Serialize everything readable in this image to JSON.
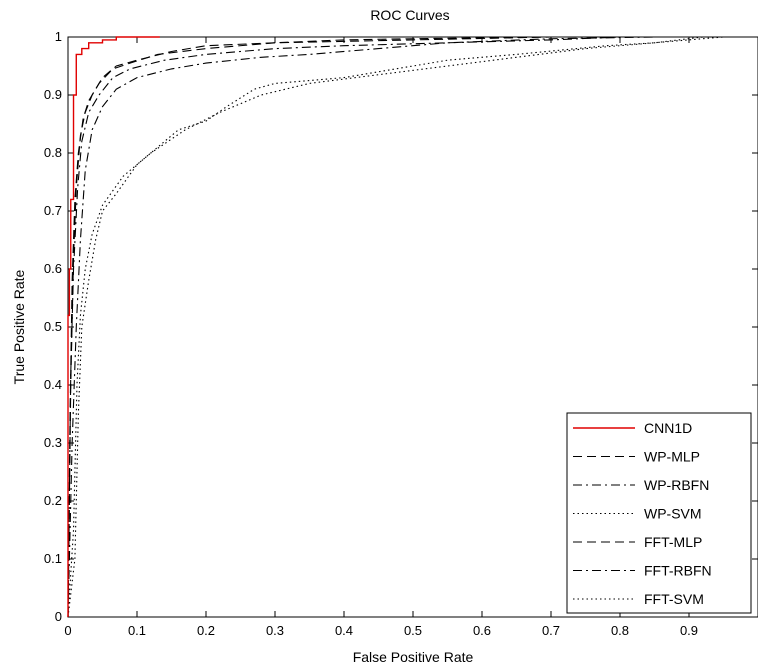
{
  "chart_data": {
    "type": "line",
    "title": "ROC Curves",
    "xlabel": "False Positive Rate",
    "ylabel": "True Positive Rate",
    "xlim": [
      0,
      1
    ],
    "ylim": [
      0,
      1
    ],
    "xticks": [
      "0",
      "0.1",
      "0.2",
      "0.3",
      "0.4",
      "0.5",
      "0.6",
      "0.7",
      "0.8",
      "0.9"
    ],
    "yticks": [
      "0",
      "0.1",
      "0.2",
      "0.3",
      "0.4",
      "0.5",
      "0.6",
      "0.7",
      "0.8",
      "0.9",
      "1"
    ],
    "grid": false,
    "legend_position": "bottom-right",
    "series": [
      {
        "name": "CNN1D",
        "color": "#e00000",
        "style": "solid",
        "points": [
          [
            0,
            0
          ],
          [
            0,
            0.52
          ],
          [
            0.002,
            0.52
          ],
          [
            0.002,
            0.6
          ],
          [
            0.004,
            0.6
          ],
          [
            0.004,
            0.72
          ],
          [
            0.008,
            0.72
          ],
          [
            0.008,
            0.9
          ],
          [
            0.012,
            0.9
          ],
          [
            0.012,
            0.97
          ],
          [
            0.02,
            0.97
          ],
          [
            0.02,
            0.98
          ],
          [
            0.03,
            0.98
          ],
          [
            0.03,
            0.99
          ],
          [
            0.05,
            0.99
          ],
          [
            0.05,
            0.995
          ],
          [
            0.07,
            0.995
          ],
          [
            0.07,
            1.0
          ],
          [
            0.133,
            1.0
          ]
        ]
      },
      {
        "name": "WP-MLP",
        "color": "#000000",
        "style": "dashed",
        "points": [
          [
            0,
            0
          ],
          [
            0.004,
            0.4
          ],
          [
            0.008,
            0.62
          ],
          [
            0.012,
            0.74
          ],
          [
            0.018,
            0.83
          ],
          [
            0.025,
            0.87
          ],
          [
            0.035,
            0.9
          ],
          [
            0.05,
            0.93
          ],
          [
            0.07,
            0.95
          ],
          [
            0.1,
            0.96
          ],
          [
            0.15,
            0.975
          ],
          [
            0.2,
            0.985
          ],
          [
            0.3,
            0.99
          ],
          [
            0.4,
            0.995
          ],
          [
            0.5,
            0.997
          ],
          [
            0.7,
            1.0
          ],
          [
            1.0,
            1.0
          ]
        ]
      },
      {
        "name": "WP-RBFN",
        "color": "#000000",
        "style": "dashdot",
        "points": [
          [
            0,
            0
          ],
          [
            0.006,
            0.3
          ],
          [
            0.012,
            0.5
          ],
          [
            0.018,
            0.65
          ],
          [
            0.025,
            0.77
          ],
          [
            0.035,
            0.84
          ],
          [
            0.05,
            0.88
          ],
          [
            0.07,
            0.91
          ],
          [
            0.1,
            0.93
          ],
          [
            0.15,
            0.945
          ],
          [
            0.2,
            0.955
          ],
          [
            0.28,
            0.965
          ],
          [
            0.35,
            0.97
          ],
          [
            0.45,
            0.98
          ],
          [
            0.55,
            0.99
          ],
          [
            0.7,
            0.995
          ],
          [
            0.8,
            1.0
          ],
          [
            1.0,
            1.0
          ]
        ]
      },
      {
        "name": "WP-SVM",
        "color": "#000000",
        "style": "dotted",
        "points": [
          [
            0,
            0
          ],
          [
            0.01,
            0.1
          ],
          [
            0.015,
            0.35
          ],
          [
            0.02,
            0.5
          ],
          [
            0.03,
            0.58
          ],
          [
            0.04,
            0.65
          ],
          [
            0.05,
            0.7
          ],
          [
            0.07,
            0.73
          ],
          [
            0.1,
            0.78
          ],
          [
            0.13,
            0.81
          ],
          [
            0.16,
            0.84
          ],
          [
            0.2,
            0.855
          ],
          [
            0.23,
            0.88
          ],
          [
            0.27,
            0.91
          ],
          [
            0.3,
            0.92
          ],
          [
            0.4,
            0.93
          ],
          [
            0.45,
            0.94
          ],
          [
            0.5,
            0.95
          ],
          [
            0.55,
            0.96
          ],
          [
            0.65,
            0.97
          ],
          [
            0.78,
            0.985
          ],
          [
            0.85,
            0.99
          ],
          [
            0.92,
            1.0
          ],
          [
            1.0,
            1.0
          ]
        ]
      },
      {
        "name": "FFT-MLP",
        "color": "#000000",
        "style": "dashed",
        "points": [
          [
            0,
            0
          ],
          [
            0.003,
            0.35
          ],
          [
            0.006,
            0.58
          ],
          [
            0.01,
            0.72
          ],
          [
            0.015,
            0.8
          ],
          [
            0.022,
            0.86
          ],
          [
            0.03,
            0.89
          ],
          [
            0.045,
            0.92
          ],
          [
            0.065,
            0.945
          ],
          [
            0.09,
            0.955
          ],
          [
            0.13,
            0.97
          ],
          [
            0.2,
            0.98
          ],
          [
            0.3,
            0.99
          ],
          [
            0.5,
            0.995
          ],
          [
            0.7,
            1.0
          ],
          [
            1.0,
            1.0
          ]
        ]
      },
      {
        "name": "FFT-RBFN",
        "color": "#000000",
        "style": "dashdot",
        "points": [
          [
            0,
            0
          ],
          [
            0.004,
            0.42
          ],
          [
            0.008,
            0.6
          ],
          [
            0.014,
            0.74
          ],
          [
            0.02,
            0.82
          ],
          [
            0.03,
            0.87
          ],
          [
            0.045,
            0.9
          ],
          [
            0.065,
            0.93
          ],
          [
            0.09,
            0.945
          ],
          [
            0.14,
            0.96
          ],
          [
            0.2,
            0.97
          ],
          [
            0.3,
            0.98
          ],
          [
            0.4,
            0.985
          ],
          [
            0.55,
            0.99
          ],
          [
            0.7,
            0.997
          ],
          [
            0.85,
            1.0
          ],
          [
            1.0,
            1.0
          ]
        ]
      },
      {
        "name": "FFT-SVM",
        "color": "#000000",
        "style": "dotted",
        "points": [
          [
            0,
            0
          ],
          [
            0.008,
            0.15
          ],
          [
            0.013,
            0.4
          ],
          [
            0.018,
            0.52
          ],
          [
            0.025,
            0.6
          ],
          [
            0.035,
            0.66
          ],
          [
            0.05,
            0.71
          ],
          [
            0.08,
            0.76
          ],
          [
            0.12,
            0.8
          ],
          [
            0.17,
            0.84
          ],
          [
            0.22,
            0.87
          ],
          [
            0.28,
            0.9
          ],
          [
            0.35,
            0.92
          ],
          [
            0.45,
            0.935
          ],
          [
            0.55,
            0.95
          ],
          [
            0.65,
            0.965
          ],
          [
            0.75,
            0.98
          ],
          [
            0.85,
            0.99
          ],
          [
            0.95,
            1.0
          ],
          [
            1.0,
            1.0
          ]
        ]
      }
    ]
  }
}
